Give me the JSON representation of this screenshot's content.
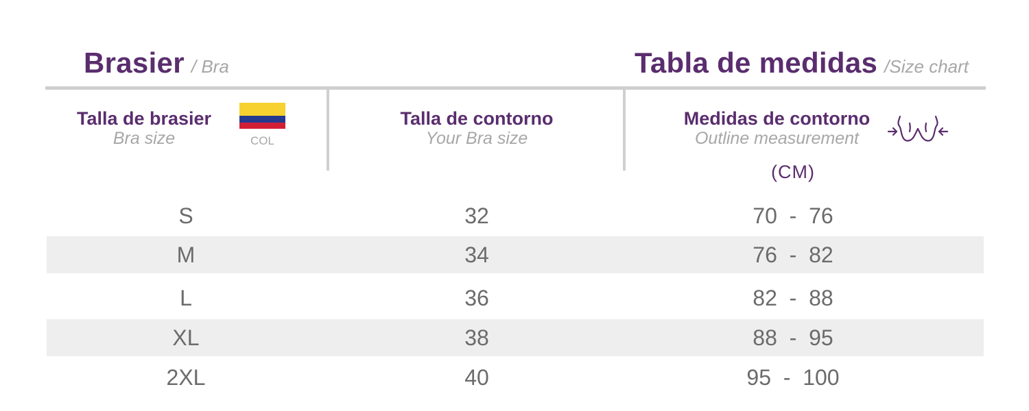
{
  "title_left": {
    "main": "Brasier",
    "sub": "/ Bra"
  },
  "title_right": {
    "main": "Tabla de medidas",
    "sub": "/Size chart"
  },
  "columns": [
    {
      "main": "Talla de brasier",
      "sub": "Bra size"
    },
    {
      "main": "Talla de contorno",
      "sub": "Your Bra size"
    },
    {
      "main": "Medidas de contorno",
      "sub": "Outline measurement"
    }
  ],
  "flag": {
    "caption": "COL",
    "colors": [
      "#f7d130",
      "#253a8f",
      "#d31f35"
    ]
  },
  "unit": "(CM)",
  "icons": {
    "bra": "bra-measure-icon"
  },
  "colors": {
    "accent": "#5a2d6e",
    "muted": "#a7a7a7",
    "row_shade": "#efeeee",
    "rule": "#cfcfcf"
  },
  "rows": [
    {
      "size": "S",
      "band": "32",
      "range": "70  -  76"
    },
    {
      "size": "M",
      "band": "34",
      "range": "76  -  82"
    },
    {
      "size": "L",
      "band": "36",
      "range": "82  -  88"
    },
    {
      "size": "XL",
      "band": "38",
      "range": "88  -  95"
    },
    {
      "size": "2XL",
      "band": "40",
      "range": "95  -  100"
    }
  ]
}
